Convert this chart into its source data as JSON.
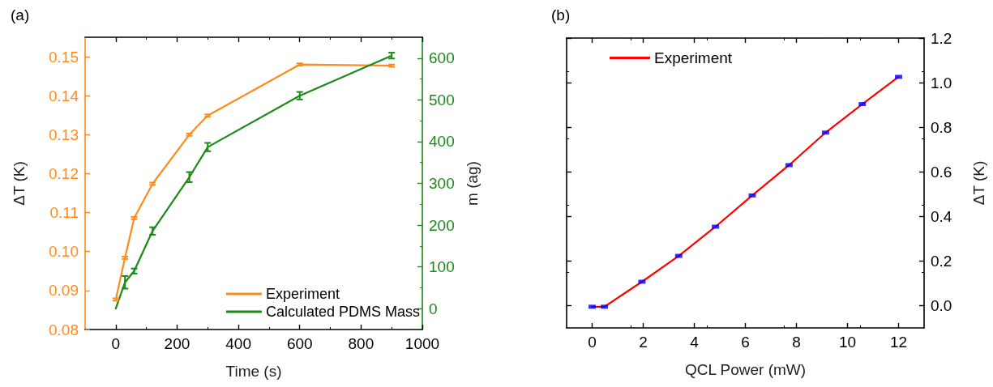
{
  "chart_data": [
    {
      "type": "line",
      "title": "(a)",
      "xlabel": "Time (s)",
      "ylabel": "ΔT (K)",
      "y2label": "m (ag)",
      "xlim": [
        -100,
        1000
      ],
      "xticks": [
        0,
        200,
        400,
        600,
        800,
        1000
      ],
      "ylim": [
        0.08,
        0.155
      ],
      "yticks": [
        0.08,
        0.09,
        {
          "value": 0.1,
          "label": "0.10"
        },
        0.11,
        0.12,
        0.13,
        0.14,
        0.15
      ],
      "y2lim": [
        -50,
        650
      ],
      "y2ticks": [
        0,
        100,
        200,
        300,
        400,
        500,
        600
      ],
      "legend": "bottom right",
      "marker": "none",
      "line_style": "solid",
      "grid": false,
      "series": [
        {
          "name": "Experiment",
          "color": "#ff8c1a",
          "x": [
            0,
            30,
            60,
            120,
            240,
            300,
            600,
            900
          ],
          "values": [
            0.0877,
            0.0984,
            0.1086,
            0.1174,
            0.13,
            0.1349,
            0.148,
            0.1477
          ],
          "errors": [
            0.0003,
            0.0003,
            0.0003,
            0.0003,
            0.0003,
            0.0003,
            0.0003,
            0.0003
          ]
        },
        {
          "name": "Calculated PDMS Mass",
          "color": "#1a8a1a",
          "axis": "y2",
          "x": [
            0,
            30,
            60,
            120,
            240,
            300,
            600,
            900
          ],
          "values": [
            0,
            63,
            90,
            186,
            315,
            387,
            510,
            606
          ],
          "errors": [
            null,
            15,
            6,
            9,
            12,
            10,
            9,
            7
          ]
        }
      ]
    },
    {
      "type": "line",
      "title": "(b)",
      "xlabel": "QCL Power (mW)",
      "ylabel": "ΔT (K)",
      "xlim": [
        -1,
        13
      ],
      "xticks": [
        0,
        2,
        4,
        6,
        8,
        10,
        12
      ],
      "ylim": [
        -0.1,
        1.2
      ],
      "yticks": [
        {
          "value": 0,
          "label": "0.0"
        },
        0.2,
        0.4,
        0.6,
        0.8,
        {
          "value": 1,
          "label": "1.0"
        },
        1.2
      ],
      "legend": "top left",
      "line_style": "solid",
      "grid": false,
      "series": [
        {
          "name": "Experiment",
          "color": "#ff0000",
          "marker": "none",
          "x": [
            0,
            0.48,
            1.95,
            3.39,
            4.83,
            6.27,
            7.71,
            9.14,
            10.58,
            12.0
          ],
          "values": [
            -0.005,
            -0.005,
            0.107,
            0.223,
            0.354,
            0.494,
            0.63,
            0.776,
            0.904,
            1.026
          ]
        },
        {
          "type": "scatter",
          "color": "#0000ff",
          "marker": "square",
          "x": [
            0,
            0.48,
            1.95,
            3.39,
            4.83,
            6.27,
            7.71,
            9.14,
            10.58,
            12.0
          ],
          "values": [
            -0.005,
            -0.005,
            0.107,
            0.223,
            0.354,
            0.494,
            0.63,
            0.776,
            0.904,
            1.026
          ]
        }
      ]
    }
  ]
}
